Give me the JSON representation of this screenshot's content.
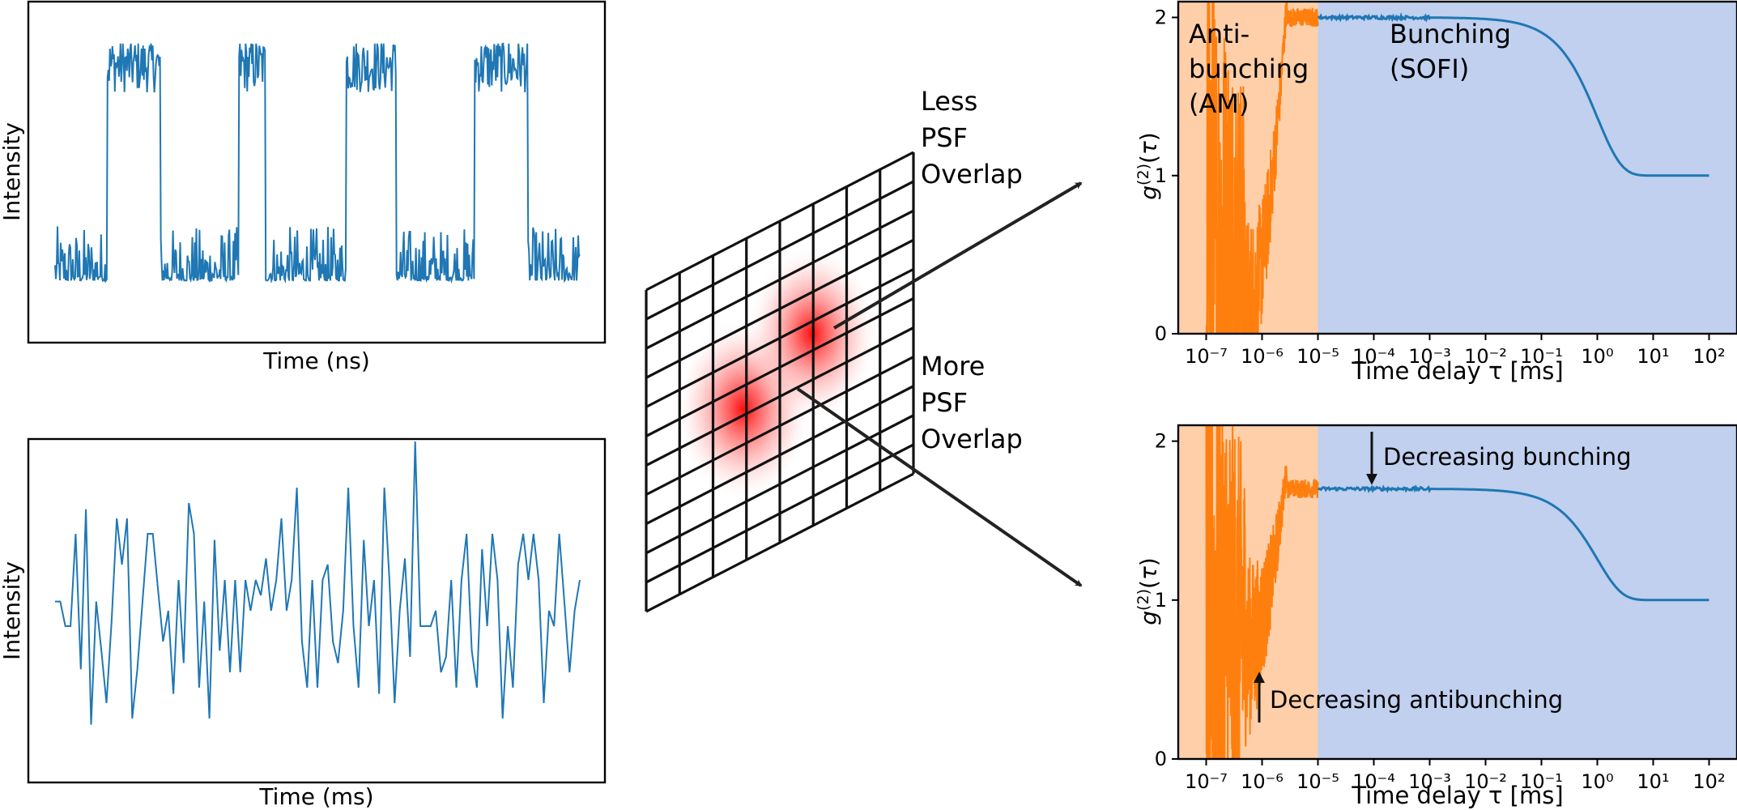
{
  "colors": {
    "trace_blue": "#1f77b4",
    "trace_orange": "#ff7f0e",
    "shade_orange": "#ffcfaa",
    "shade_blue": "#c0d0ee",
    "psf_red": "#ff0000"
  },
  "chart_data": [
    {
      "id": "trace-ns",
      "type": "line",
      "xlabel": "Time (ns)",
      "ylabel": "Intensity",
      "ticks_visible": false,
      "description_levels": {
        "off": 0.1,
        "on": 0.9
      },
      "series": [
        {
          "color": "#1f77b4",
          "on_intervals": [
            [
              0.1,
              0.2
            ],
            [
              0.35,
              0.4
            ],
            [
              0.555,
              0.65
            ],
            [
              0.8,
              0.9
            ]
          ],
          "x_range": [
            0,
            1
          ]
        }
      ]
    },
    {
      "id": "trace-ms",
      "type": "line",
      "xlabel": "Time (ms)",
      "ylabel": "Intensity",
      "ticks_visible": false,
      "series": [
        {
          "color": "#1f77b4",
          "values": [
            0.48,
            0.48,
            0.4,
            0.4,
            0.7,
            0.26,
            0.78,
            0.08,
            0.48,
            0.32,
            0.15,
            0.42,
            0.75,
            0.6,
            0.75,
            0.1,
            0.26,
            0.48,
            0.7,
            0.7,
            0.52,
            0.35,
            0.45,
            0.18,
            0.55,
            0.28,
            0.8,
            0.7,
            0.2,
            0.48,
            0.1,
            0.68,
            0.32,
            0.55,
            0.25,
            0.55,
            0.25,
            0.55,
            0.45,
            0.55,
            0.5,
            0.62,
            0.45,
            0.55,
            0.75,
            0.45,
            0.55,
            0.85,
            0.35,
            0.2,
            0.55,
            0.2,
            0.55,
            0.6,
            0.35,
            0.28,
            0.45,
            0.85,
            0.4,
            0.2,
            0.68,
            0.4,
            0.55,
            0.18,
            0.85,
            0.55,
            0.15,
            0.45,
            0.62,
            0.3,
            1.0,
            0.4,
            0.4,
            0.4,
            0.45,
            0.25,
            0.3,
            0.55,
            0.2,
            0.55,
            0.7,
            0.32,
            0.2,
            0.65,
            0.4,
            0.7,
            0.55,
            0.1,
            0.4,
            0.2,
            0.6,
            0.7,
            0.55,
            0.7,
            0.55,
            0.15,
            0.45,
            0.4,
            0.7,
            0.48,
            0.25,
            0.45,
            0.55
          ]
        }
      ]
    },
    {
      "id": "g2-top",
      "type": "line",
      "xscale": "log",
      "xlim_exp": [
        -7.5,
        2.5
      ],
      "ylim": [
        0,
        2.1
      ],
      "xlabel": "Time delay τ [ms]",
      "ylabel": "g(2)(τ)",
      "xticks": [
        "10⁻⁷",
        "10⁻⁶",
        "10⁻⁵",
        "10⁻⁴",
        "10⁻³",
        "10⁻²",
        "10⁻¹",
        "10⁰",
        "10¹",
        "10²"
      ],
      "xtick_exps": [
        -7,
        -6,
        -5,
        -4,
        -3,
        -2,
        -1,
        0,
        1,
        2
      ],
      "yticks": [
        0,
        1,
        2
      ],
      "regions": [
        {
          "label": "Anti-bunching (AM)",
          "lines": [
            "Anti-",
            "bunching",
            "(AM)"
          ],
          "x_exp_range": [
            -7.5,
            -5
          ],
          "color": "#ffcfaa"
        },
        {
          "label": "Bunching (SOFI)",
          "lines": [
            "Bunching",
            "(SOFI)"
          ],
          "x_exp_range": [
            -5,
            2.5
          ],
          "color": "#c0d0ee"
        }
      ],
      "series": [
        {
          "color": "#ff7f0e",
          "region": "antibunching",
          "noisy": true,
          "min_value": 0.0,
          "plateau": 2.0,
          "dip_center_exp": -6.2
        },
        {
          "color": "#1f77b4",
          "region": "bunching",
          "plateau": 2.0,
          "end_value": 1.0,
          "decay_time_exp": 0.0
        }
      ]
    },
    {
      "id": "g2-bottom",
      "type": "line",
      "xscale": "log",
      "xlim_exp": [
        -7.5,
        2.5
      ],
      "ylim": [
        0,
        2.1
      ],
      "xlabel": "Time delay τ [ms]",
      "ylabel": "g(2)(τ)",
      "xticks": [
        "10⁻⁷",
        "10⁻⁶",
        "10⁻⁵",
        "10⁻⁴",
        "10⁻³",
        "10⁻²",
        "10⁻¹",
        "10⁰",
        "10¹",
        "10²"
      ],
      "xtick_exps": [
        -7,
        -6,
        -5,
        -4,
        -3,
        -2,
        -1,
        0,
        1,
        2
      ],
      "yticks": [
        0,
        1,
        2
      ],
      "regions": [
        {
          "x_exp_range": [
            -7.5,
            -5
          ],
          "color": "#ffcfaa"
        },
        {
          "x_exp_range": [
            -5,
            2.5
          ],
          "color": "#c0d0ee"
        }
      ],
      "annotations": [
        {
          "text": "Decreasing bunching",
          "x_exp": -4.0,
          "y": 1.7,
          "direction": "down"
        },
        {
          "text": "Decreasing antibunching",
          "x_exp": -6.0,
          "y": 0.55,
          "direction": "up"
        }
      ],
      "series": [
        {
          "color": "#ff7f0e",
          "region": "antibunching",
          "noisy": true,
          "min_value": 0.55,
          "plateau": 1.7
        },
        {
          "color": "#1f77b4",
          "region": "bunching",
          "plateau": 1.7,
          "end_value": 1.0,
          "decay_time_exp": 0.0
        }
      ]
    }
  ],
  "diagram": {
    "label_less": [
      "Less",
      "PSF",
      "Overlap"
    ],
    "label_more": [
      "More",
      "PSF",
      "Overlap"
    ],
    "grid_cols": 8,
    "grid_rows": 11
  }
}
